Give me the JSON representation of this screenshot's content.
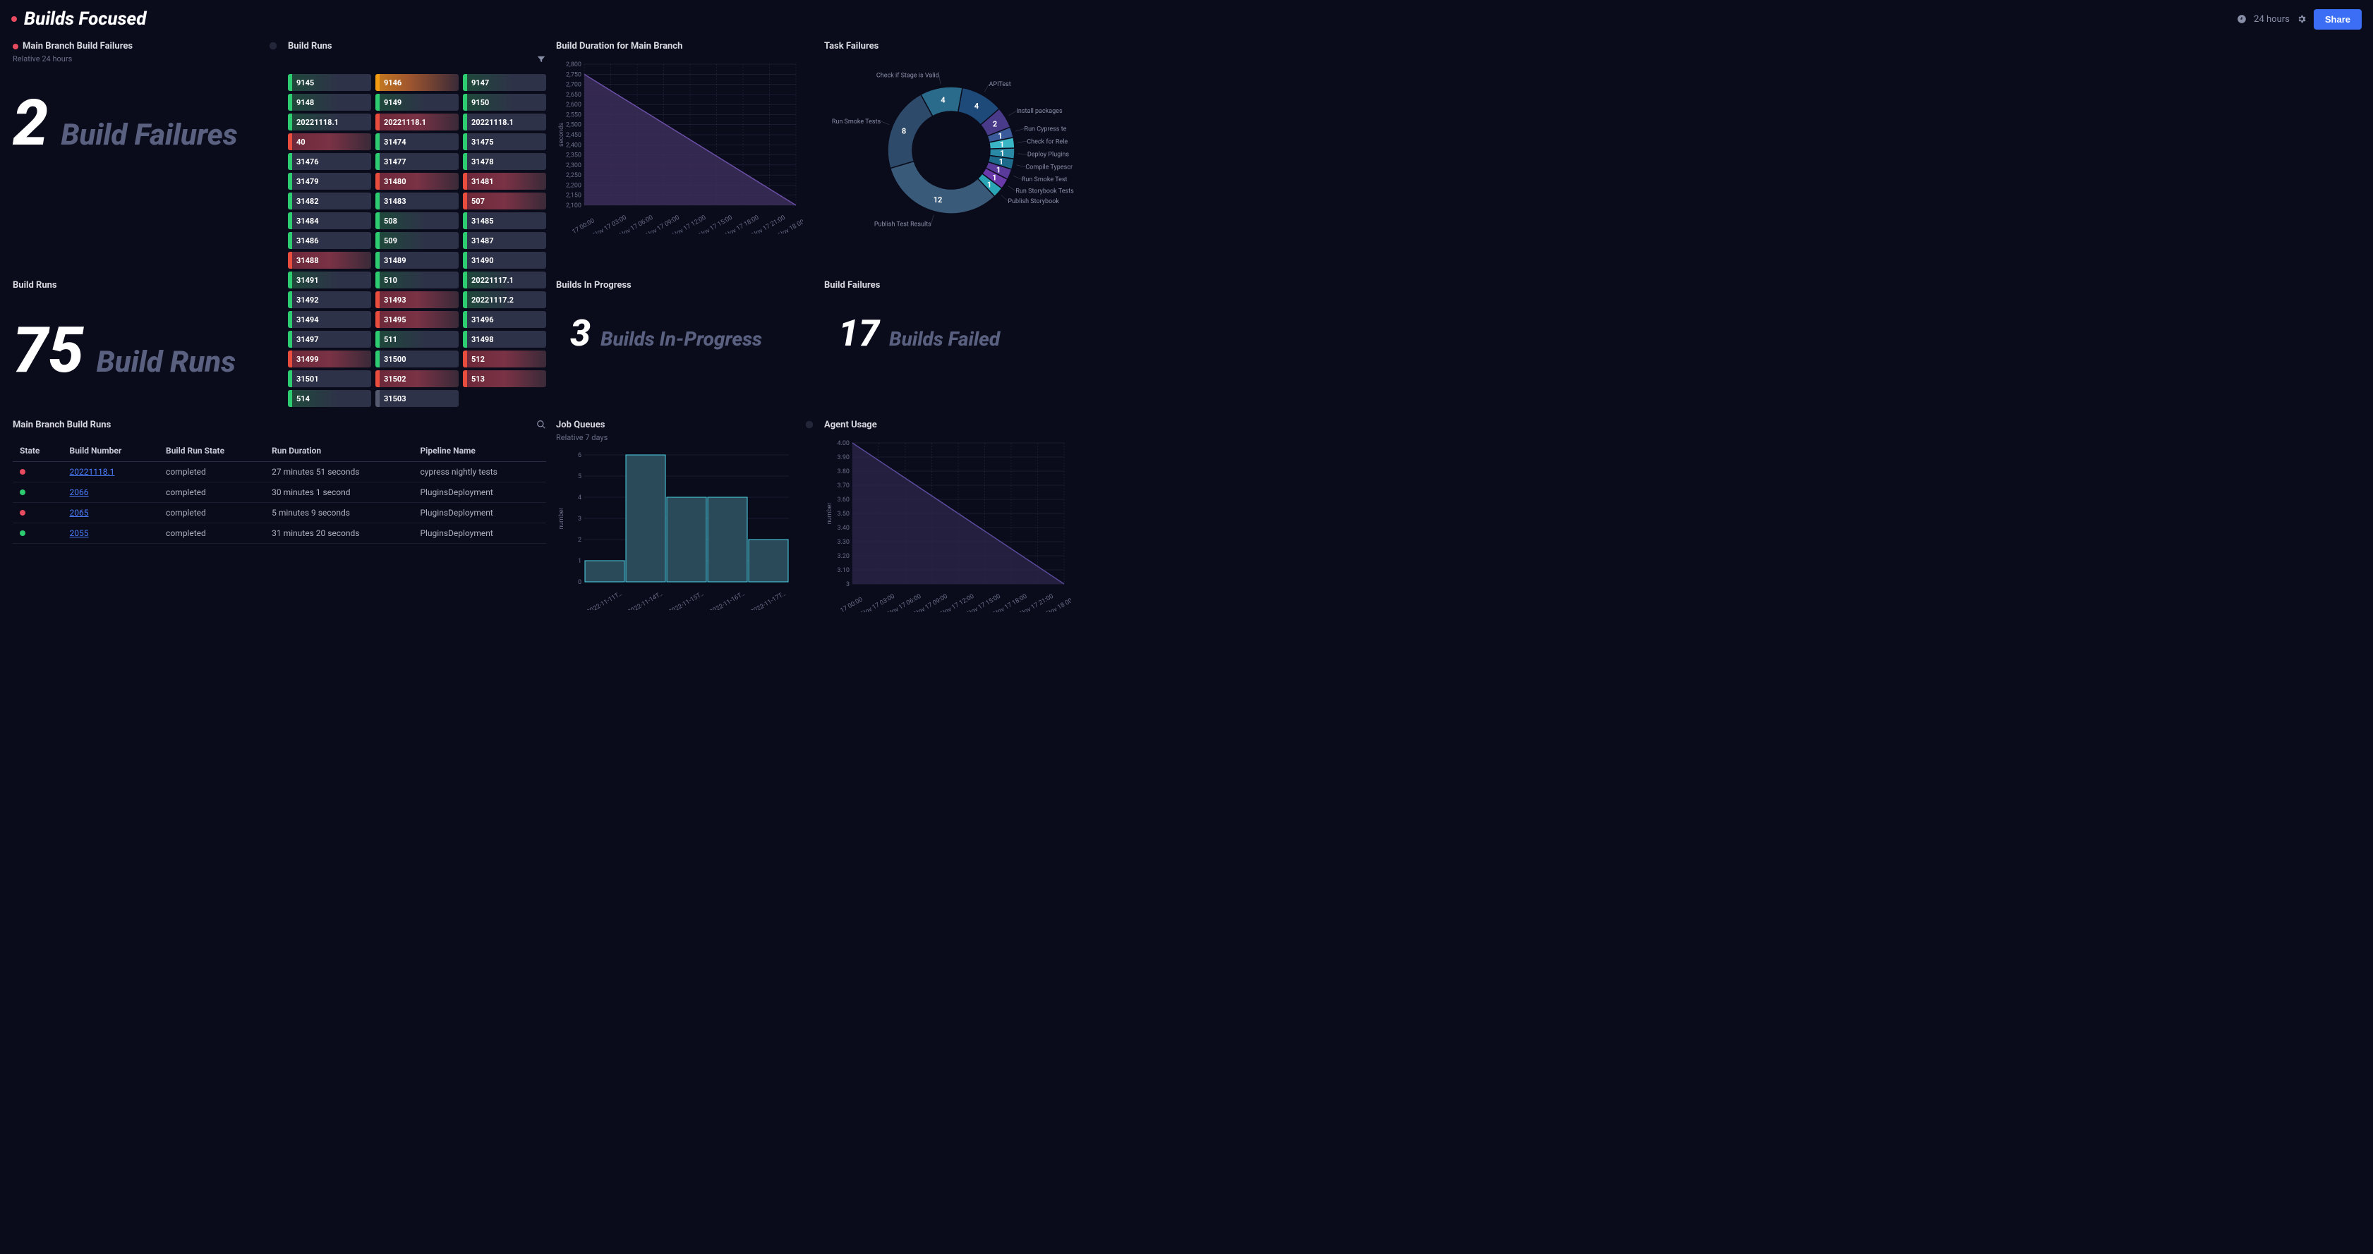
{
  "header": {
    "title": "Builds Focused",
    "time_range": "24 hours",
    "share": "Share"
  },
  "panels": {
    "failures": {
      "title": "Main Branch Build Failures",
      "subtitle": "Relative 24 hours",
      "value": "2",
      "label": "Build Failures"
    },
    "build_runs_count": {
      "title": "Build Runs",
      "value": "75",
      "label": "Build Runs"
    },
    "build_runs_pills": {
      "title": "Build Runs",
      "columns": [
        [
          {
            "label": "9145",
            "status": "green"
          },
          {
            "label": "9148",
            "status": "green"
          },
          {
            "label": "20221118.1",
            "status": "green"
          },
          {
            "label": "40",
            "status": "red"
          },
          {
            "label": "31476",
            "status": "neutral"
          },
          {
            "label": "31479",
            "status": "neutral"
          },
          {
            "label": "31482",
            "status": "neutral"
          },
          {
            "label": "31484",
            "status": "neutral"
          },
          {
            "label": "31486",
            "status": "neutral"
          },
          {
            "label": "31488",
            "status": "red"
          },
          {
            "label": "31491",
            "status": "green"
          },
          {
            "label": "31492",
            "status": "neutral"
          },
          {
            "label": "31494",
            "status": "neutral"
          },
          {
            "label": "31497",
            "status": "neutral"
          },
          {
            "label": "31499",
            "status": "red"
          },
          {
            "label": "31501",
            "status": "neutral"
          },
          {
            "label": "514",
            "status": "green"
          }
        ],
        [
          {
            "label": "9146",
            "status": "orange"
          },
          {
            "label": "9149",
            "status": "green"
          },
          {
            "label": "20221118.1",
            "status": "red"
          },
          {
            "label": "31474",
            "status": "neutral"
          },
          {
            "label": "31477",
            "status": "neutral"
          },
          {
            "label": "31480",
            "status": "red"
          },
          {
            "label": "31483",
            "status": "neutral"
          },
          {
            "label": "508",
            "status": "green"
          },
          {
            "label": "509",
            "status": "green"
          },
          {
            "label": "31489",
            "status": "neutral"
          },
          {
            "label": "510",
            "status": "green"
          },
          {
            "label": "31493",
            "status": "red"
          },
          {
            "label": "31495",
            "status": "red"
          },
          {
            "label": "511",
            "status": "green"
          },
          {
            "label": "31500",
            "status": "neutral"
          },
          {
            "label": "31502",
            "status": "red"
          },
          {
            "label": "31503",
            "status": "neutral-gray"
          }
        ],
        [
          {
            "label": "9147",
            "status": "green"
          },
          {
            "label": "9150",
            "status": "green"
          },
          {
            "label": "20221118.1",
            "status": "neutral"
          },
          {
            "label": "31475",
            "status": "neutral"
          },
          {
            "label": "31478",
            "status": "neutral"
          },
          {
            "label": "31481",
            "status": "red"
          },
          {
            "label": "507",
            "status": "red"
          },
          {
            "label": "31485",
            "status": "neutral"
          },
          {
            "label": "31487",
            "status": "neutral"
          },
          {
            "label": "31490",
            "status": "neutral"
          },
          {
            "label": "20221117.1",
            "status": "green"
          },
          {
            "label": "20221117.2",
            "status": "green"
          },
          {
            "label": "31496",
            "status": "neutral"
          },
          {
            "label": "31498",
            "status": "neutral"
          },
          {
            "label": "512",
            "status": "red"
          },
          {
            "label": "513",
            "status": "red"
          }
        ]
      ]
    },
    "duration": {
      "title": "Build Duration for Main Branch",
      "ylabel": "seconds",
      "ylim": [
        2100,
        2800
      ],
      "ytick_step": 50,
      "xlabels": [
        "17 00:00",
        "Nov 17 03:00",
        "Nov 17 06:00",
        "Nov 17 09:00",
        "Nov 17 12:00",
        "Nov 17 15:00",
        "Nov 17 18:00",
        "Nov 17 21:00",
        "Nov 18 00:00"
      ],
      "area_points": [
        [
          0,
          2750
        ],
        [
          1,
          2100
        ]
      ],
      "fill_color": "#3d2f5e",
      "stroke_color": "#6b4fa8"
    },
    "task_failures": {
      "title": "Task Failures",
      "slices": [
        {
          "label": "Check if Stage is Valid",
          "value": 4,
          "color": "#2a6a8a"
        },
        {
          "label": "APITest",
          "value": 4,
          "color": "#1e4a7a"
        },
        {
          "label": "Install packages",
          "value": 2,
          "color": "#4a3a8a"
        },
        {
          "label": "Run Cypress te",
          "value": 1,
          "color": "#3a5a9a"
        },
        {
          "label": "Check for Rele",
          "value": 1,
          "color": "#3ab5c5"
        },
        {
          "label": "Deploy Plugins",
          "value": 1,
          "color": "#2a8aa5"
        },
        {
          "label": "Compile Typescr",
          "value": 1,
          "color": "#1e6a8a"
        },
        {
          "label": "Run Smoke Test",
          "value": 1,
          "color": "#5a3a9a"
        },
        {
          "label": "Run Storybook Tests",
          "value": 1,
          "color": "#6a3aaa"
        },
        {
          "label": "Publish Storybook",
          "value": 1,
          "color": "#2aa5b5"
        },
        {
          "label": "Publish Test Results",
          "value": 12,
          "color": "#3a5a7a"
        },
        {
          "label": "Run Smoke Tests",
          "value": 8,
          "color": "#2e4a6a"
        }
      ]
    },
    "in_progress": {
      "title": "Builds In Progress",
      "value": "3",
      "label": "Builds In-Progress"
    },
    "build_fail_count": {
      "title": "Build Failures",
      "value": "17",
      "label": "Builds Failed"
    },
    "job_queues": {
      "title": "Job Queues",
      "subtitle": "Relative 7 days",
      "ylabel": "number",
      "ylim": [
        0,
        6
      ],
      "xlabels": [
        "2022-11-11T…",
        "2022-11-14T…",
        "2022-11-15T…",
        "2022-11-16T…",
        "2022-11-17T…"
      ],
      "bars": [
        1,
        6,
        4,
        4,
        2
      ],
      "bar_fill": "#2a4a5a",
      "bar_stroke": "#4ad5e5"
    },
    "agent_usage": {
      "title": "Agent Usage",
      "ylabel": "number",
      "ylim": [
        3.0,
        4.0
      ],
      "ytick_step": 0.1,
      "xlabels": [
        "17 00:00",
        "Nov 17 03:00",
        "Nov 17 06:00",
        "Nov 17 09:00",
        "Nov 17 12:00",
        "Nov 17 15:00",
        "Nov 17 18:00",
        "Nov 17 21:00",
        "Nov 18 00:00"
      ],
      "area_points": [
        [
          0,
          4.0
        ],
        [
          1,
          3.0
        ]
      ],
      "fill_color": "#2a2448",
      "stroke_color": "#5a4a9a"
    },
    "table": {
      "title": "Main Branch Build Runs",
      "columns": [
        "State",
        "Build Number",
        "Build Run State",
        "Run Duration",
        "Pipeline Name"
      ],
      "rows": [
        {
          "state": "#e84a5f",
          "num": "20221118.1",
          "run_state": "completed",
          "duration": "27 minutes 51 seconds",
          "pipeline": "cypress nightly tests"
        },
        {
          "state": "#2ecc71",
          "num": "2066",
          "run_state": "completed",
          "duration": "30 minutes 1 second",
          "pipeline": "PluginsDeployment"
        },
        {
          "state": "#e84a5f",
          "num": "2065",
          "run_state": "completed",
          "duration": "5 minutes 9 seconds",
          "pipeline": "PluginsDeployment"
        },
        {
          "state": "#2ecc71",
          "num": "2055",
          "run_state": "completed",
          "duration": "31 minutes 20 seconds",
          "pipeline": "PluginsDeployment"
        }
      ]
    }
  },
  "colors": {
    "background": "#0a0c1b",
    "grid": "#2a2e44",
    "accent": "#3b6ef5"
  }
}
